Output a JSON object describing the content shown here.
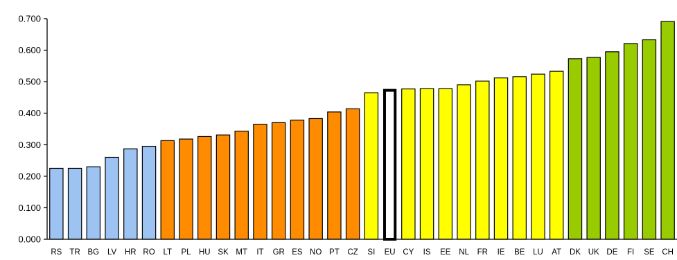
{
  "chart_data": {
    "type": "bar",
    "title": "",
    "xlabel": "",
    "ylabel": "",
    "ylim": [
      0,
      0.7
    ],
    "yticks": [
      "0.000",
      "0.100",
      "0.200",
      "0.300",
      "0.400",
      "0.500",
      "0.600",
      "0.700"
    ],
    "grid": false,
    "legend": "none",
    "categories": [
      "RS",
      "TR",
      "BG",
      "LV",
      "HR",
      "RO",
      "LT",
      "PL",
      "HU",
      "SK",
      "MT",
      "IT",
      "GR",
      "ES",
      "NO",
      "PT",
      "CZ",
      "SI",
      "EU",
      "CY",
      "IS",
      "EE",
      "NL",
      "FR",
      "IE",
      "BE",
      "LU",
      "AT",
      "DK",
      "UK",
      "DE",
      "FI",
      "SE",
      "CH"
    ],
    "values": [
      0.225,
      0.225,
      0.23,
      0.26,
      0.287,
      0.295,
      0.313,
      0.318,
      0.326,
      0.331,
      0.343,
      0.365,
      0.37,
      0.378,
      0.383,
      0.404,
      0.414,
      0.465,
      0.477,
      0.477,
      0.478,
      0.478,
      0.49,
      0.502,
      0.512,
      0.516,
      0.524,
      0.533,
      0.573,
      0.577,
      0.595,
      0.621,
      0.633,
      0.691
    ],
    "groups": [
      "blue",
      "blue",
      "blue",
      "blue",
      "blue",
      "blue",
      "orange",
      "orange",
      "orange",
      "orange",
      "orange",
      "orange",
      "orange",
      "orange",
      "orange",
      "orange",
      "orange",
      "yellow",
      "eu",
      "yellow",
      "yellow",
      "yellow",
      "yellow",
      "yellow",
      "yellow",
      "yellow",
      "yellow",
      "yellow",
      "green",
      "green",
      "green",
      "green",
      "green",
      "green"
    ],
    "colors": {
      "blue": "#9DC3F2",
      "orange": "#FF8C00",
      "yellow": "#FFFF00",
      "eu": "#FFFFFF",
      "green": "#99CC00",
      "outline": "#000000"
    }
  }
}
